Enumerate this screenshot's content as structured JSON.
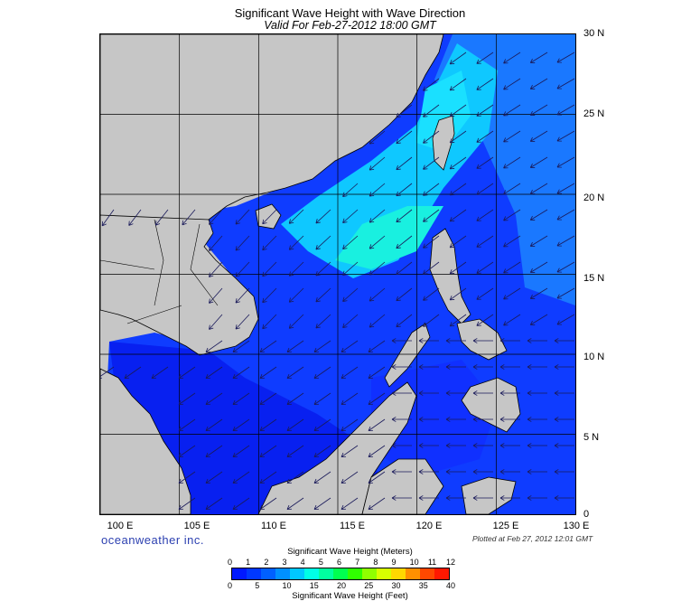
{
  "title": "Significant Wave Height with Wave Direction",
  "subtitle": "Valid For Feb-27-2012 18:00 GMT",
  "lat_labels": [
    "30 N",
    "25 N",
    "20 N",
    "15 N",
    "10 N",
    "5 N",
    "0"
  ],
  "lon_labels": [
    "100 E",
    "105 E",
    "110 E",
    "115 E",
    "120 E",
    "125 E",
    "130 E"
  ],
  "brand": "oceanweather inc.",
  "plotted": "Plotted at Feb 27, 2012 12:01 GMT",
  "colorbar": {
    "title_top": "Significant Wave Height (Meters)",
    "title_bottom": "Significant Wave Height (Feet)",
    "meters_ticks": [
      "0",
      "1",
      "2",
      "3",
      "4",
      "5",
      "6",
      "7",
      "8",
      "9",
      "10",
      "11",
      "12"
    ],
    "feet_ticks": [
      "0",
      "5",
      "10",
      "15",
      "20",
      "25",
      "30",
      "35",
      "40"
    ],
    "colors": [
      "#0018ff",
      "#0038ff",
      "#0060ff",
      "#0090ff",
      "#00c8ff",
      "#00ffe6",
      "#00ffa0",
      "#00ff50",
      "#30ff00",
      "#90ff00",
      "#d8ff00",
      "#ffd800",
      "#ff9000",
      "#ff4800",
      "#ff1800"
    ]
  },
  "colors": {
    "land": "#c6c6c6",
    "water_low": "#0a1eff",
    "water_mid": "#1a6cff",
    "water_high": "#14f0e0",
    "arrow": "#1a1a6a"
  }
}
